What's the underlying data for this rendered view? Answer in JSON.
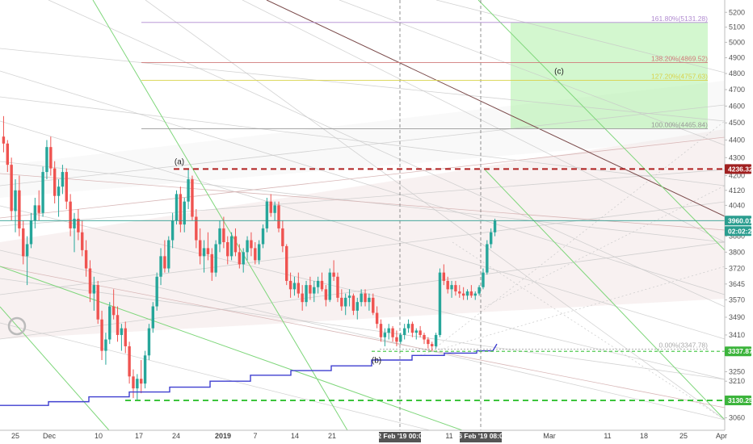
{
  "chart_data": {
    "type": "candlestick",
    "y_axis": {
      "ticks": [
        3060,
        3135,
        3210,
        3250,
        3330,
        3410,
        3490,
        3570,
        3645,
        3720,
        3800,
        3880,
        3960,
        4040,
        4120,
        4200,
        4300,
        4400,
        4500,
        4600,
        4700,
        4800,
        4900,
        5000,
        5100,
        5200
      ],
      "range": [
        3020,
        5240
      ],
      "scale": "log"
    },
    "x_axis": {
      "ticks": [
        "25",
        "Dec",
        "10",
        "17",
        "24",
        "2019",
        "7",
        "14",
        "21",
        "11",
        "Mar",
        "11",
        "18",
        "25",
        "Apr"
      ],
      "highlight_ticks": [
        "02 Feb '19  00:00",
        "16 Feb '19  08:00"
      ]
    },
    "price_labels": {
      "resistance": "4236.32",
      "last_price": "3960.01",
      "countdown": "02:02:21",
      "support_1": "3337.87",
      "support_2": "3130.25"
    },
    "fib_levels": [
      {
        "label": "161.80%(5131.28)",
        "value": 5131.28,
        "color": "#b08ad0"
      },
      {
        "label": "138.20%(4869.52)",
        "value": 4869.52,
        "color": "#d07a7a"
      },
      {
        "label": "127.20%(4757.63)",
        "value": 4757.63,
        "color": "#d8d24a"
      },
      {
        "label": "100.00%(4465.84)",
        "value": 4465.84,
        "color": "#999999"
      },
      {
        "label": "0.00%(3347.78)",
        "value": 3347.78,
        "color": "#999999"
      }
    ],
    "wave_labels": [
      "(a)",
      "(b)",
      "(c)"
    ],
    "candles": [
      [
        4420,
        4540,
        4330,
        4380
      ],
      [
        4380,
        4400,
        4220,
        4260
      ],
      [
        4260,
        4300,
        3960,
        4010
      ],
      [
        4010,
        4180,
        3900,
        4120
      ],
      [
        4120,
        4200,
        3880,
        3920
      ],
      [
        3920,
        3960,
        3740,
        3780
      ],
      [
        3780,
        3880,
        3640,
        3840
      ],
      [
        3840,
        4000,
        3820,
        3960
      ],
      [
        3960,
        4080,
        3920,
        4040
      ],
      [
        4040,
        4120,
        3960,
        4000
      ],
      [
        4000,
        4250,
        3980,
        4220
      ],
      [
        4220,
        4400,
        4180,
        4360
      ],
      [
        4360,
        4420,
        4200,
        4240
      ],
      [
        4240,
        4280,
        4050,
        4090
      ],
      [
        4090,
        4180,
        3980,
        4140
      ],
      [
        4140,
        4260,
        4100,
        4220
      ],
      [
        4220,
        4240,
        4020,
        4060
      ],
      [
        4060,
        4100,
        3880,
        3920
      ],
      [
        3920,
        4000,
        3800,
        3970
      ],
      [
        3970,
        4020,
        3860,
        3900
      ],
      [
        3900,
        3960,
        3780,
        3810
      ],
      [
        3810,
        3860,
        3680,
        3720
      ],
      [
        3720,
        3760,
        3560,
        3600
      ],
      [
        3600,
        3680,
        3520,
        3640
      ],
      [
        3640,
        3660,
        3460,
        3480
      ],
      [
        3480,
        3520,
        3300,
        3340
      ],
      [
        3340,
        3420,
        3280,
        3390
      ],
      [
        3390,
        3560,
        3370,
        3540
      ],
      [
        3540,
        3620,
        3480,
        3500
      ],
      [
        3500,
        3540,
        3380,
        3410
      ],
      [
        3410,
        3460,
        3340,
        3440
      ],
      [
        3440,
        3470,
        3330,
        3360
      ],
      [
        3360,
        3380,
        3200,
        3230
      ],
      [
        3230,
        3260,
        3140,
        3180
      ],
      [
        3180,
        3240,
        3130,
        3220
      ],
      [
        3220,
        3300,
        3160,
        3200
      ],
      [
        3200,
        3340,
        3180,
        3320
      ],
      [
        3320,
        3460,
        3300,
        3440
      ],
      [
        3440,
        3560,
        3420,
        3540
      ],
      [
        3540,
        3700,
        3520,
        3680
      ],
      [
        3680,
        3820,
        3640,
        3780
      ],
      [
        3780,
        3860,
        3700,
        3720
      ],
      [
        3720,
        3880,
        3700,
        3860
      ],
      [
        3860,
        4000,
        3820,
        3960
      ],
      [
        3960,
        4120,
        3940,
        4100
      ],
      [
        4100,
        4140,
        3900,
        3940
      ],
      [
        3940,
        4080,
        3900,
        4060
      ],
      [
        4060,
        4237,
        4020,
        4180
      ],
      [
        4180,
        4200,
        3960,
        3980
      ],
      [
        3980,
        4020,
        3820,
        3860
      ],
      [
        3860,
        3920,
        3740,
        3780
      ],
      [
        3780,
        3860,
        3700,
        3820
      ],
      [
        3820,
        3900,
        3760,
        3790
      ],
      [
        3790,
        3820,
        3660,
        3700
      ],
      [
        3700,
        3860,
        3680,
        3840
      ],
      [
        3840,
        3960,
        3800,
        3920
      ],
      [
        3920,
        3980,
        3820,
        3850
      ],
      [
        3850,
        3880,
        3740,
        3780
      ],
      [
        3780,
        3900,
        3760,
        3880
      ],
      [
        3880,
        3920,
        3780,
        3800
      ],
      [
        3800,
        3840,
        3720,
        3740
      ],
      [
        3740,
        3820,
        3700,
        3800
      ],
      [
        3800,
        3880,
        3760,
        3860
      ],
      [
        3860,
        3900,
        3780,
        3820
      ],
      [
        3820,
        3850,
        3740,
        3760
      ],
      [
        3760,
        3860,
        3740,
        3840
      ],
      [
        3840,
        3940,
        3820,
        3920
      ],
      [
        3920,
        4080,
        3900,
        4060
      ],
      [
        4060,
        4100,
        3980,
        4000
      ],
      [
        4000,
        4060,
        3960,
        4040
      ],
      [
        4040,
        4060,
        3900,
        3920
      ],
      [
        3920,
        3960,
        3800,
        3830
      ],
      [
        3830,
        3840,
        3640,
        3660
      ],
      [
        3660,
        3700,
        3580,
        3620
      ],
      [
        3620,
        3680,
        3590,
        3650
      ],
      [
        3650,
        3700,
        3580,
        3600
      ],
      [
        3600,
        3640,
        3520,
        3560
      ],
      [
        3560,
        3660,
        3540,
        3640
      ],
      [
        3640,
        3680,
        3570,
        3600
      ],
      [
        3600,
        3660,
        3560,
        3630
      ],
      [
        3630,
        3680,
        3600,
        3660
      ],
      [
        3660,
        3700,
        3610,
        3620
      ],
      [
        3620,
        3640,
        3540,
        3570
      ],
      [
        3570,
        3720,
        3560,
        3700
      ],
      [
        3700,
        3760,
        3660,
        3680
      ],
      [
        3680,
        3700,
        3560,
        3580
      ],
      [
        3580,
        3620,
        3520,
        3540
      ],
      [
        3540,
        3600,
        3500,
        3580
      ],
      [
        3580,
        3620,
        3540,
        3590
      ],
      [
        3590,
        3600,
        3500,
        3520
      ],
      [
        3520,
        3580,
        3480,
        3560
      ],
      [
        3560,
        3620,
        3540,
        3600
      ],
      [
        3600,
        3620,
        3540,
        3560
      ],
      [
        3560,
        3600,
        3520,
        3580
      ],
      [
        3580,
        3600,
        3500,
        3510
      ],
      [
        3510,
        3540,
        3440,
        3460
      ],
      [
        3460,
        3480,
        3380,
        3400
      ],
      [
        3400,
        3440,
        3360,
        3420
      ],
      [
        3420,
        3460,
        3390,
        3440
      ],
      [
        3440,
        3450,
        3380,
        3400
      ],
      [
        3400,
        3430,
        3360,
        3380
      ],
      [
        3380,
        3420,
        3370,
        3410
      ],
      [
        3410,
        3460,
        3390,
        3440
      ],
      [
        3440,
        3480,
        3420,
        3460
      ],
      [
        3460,
        3470,
        3400,
        3420
      ],
      [
        3420,
        3440,
        3390,
        3430
      ],
      [
        3430,
        3450,
        3400,
        3410
      ],
      [
        3410,
        3420,
        3370,
        3390
      ],
      [
        3390,
        3400,
        3350,
        3370
      ],
      [
        3370,
        3380,
        3340,
        3360
      ],
      [
        3360,
        3420,
        3350,
        3410
      ],
      [
        3410,
        3720,
        3400,
        3700
      ],
      [
        3700,
        3740,
        3640,
        3660
      ],
      [
        3660,
        3680,
        3600,
        3620
      ],
      [
        3620,
        3660,
        3580,
        3640
      ],
      [
        3640,
        3660,
        3590,
        3610
      ],
      [
        3610,
        3640,
        3580,
        3600
      ],
      [
        3600,
        3630,
        3570,
        3590
      ],
      [
        3590,
        3620,
        3570,
        3610
      ],
      [
        3610,
        3640,
        3580,
        3590
      ],
      [
        3590,
        3610,
        3570,
        3600
      ],
      [
        3600,
        3640,
        3590,
        3630
      ],
      [
        3630,
        3720,
        3620,
        3700
      ],
      [
        3700,
        3860,
        3690,
        3840
      ],
      [
        3840,
        3920,
        3820,
        3900
      ],
      [
        3900,
        3970,
        3880,
        3960
      ]
    ]
  }
}
